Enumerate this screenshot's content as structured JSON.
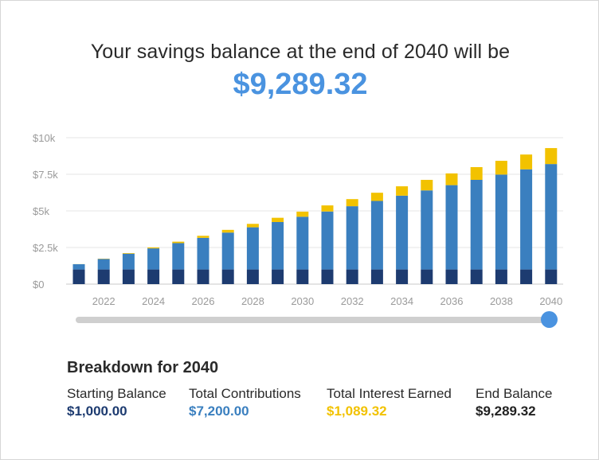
{
  "header": {
    "headline": "Your savings balance at the end of 2040 will be",
    "amount": "$9,289.32"
  },
  "colors": {
    "starting": "#1d3b70",
    "contributions": "#3a7fbf",
    "interest": "#f2c200",
    "accent": "#4a93e0"
  },
  "slider": {
    "min_year": 2021,
    "max_year": 2040,
    "selected_year": 2040
  },
  "chart_data": {
    "type": "bar",
    "stacked": true,
    "categories": [
      "2021",
      "2022",
      "2023",
      "2024",
      "2025",
      "2026",
      "2027",
      "2028",
      "2029",
      "2030",
      "2031",
      "2032",
      "2033",
      "2034",
      "2035",
      "2036",
      "2037",
      "2038",
      "2039",
      "2040"
    ],
    "x_tick_labels": [
      "2022",
      "2024",
      "2026",
      "2028",
      "2030",
      "2032",
      "2034",
      "2036",
      "2038",
      "2040"
    ],
    "y_tick_labels": [
      "$0",
      "$2.5k",
      "$5k",
      "$7.5k",
      "$10k"
    ],
    "y_ticks": [
      0,
      2500,
      5000,
      7500,
      10000
    ],
    "ylim": [
      0,
      10000
    ],
    "grid": true,
    "series": [
      {
        "name": "Starting Balance",
        "color": "#1d3b70",
        "values": [
          1000,
          1000,
          1000,
          1000,
          1000,
          1000,
          1000,
          1000,
          1000,
          1000,
          1000,
          1000,
          1000,
          1000,
          1000,
          1000,
          1000,
          1000,
          1000,
          1000
        ]
      },
      {
        "name": "Total Contributions",
        "color": "#3a7fbf",
        "values": [
          360,
          720,
          1080,
          1440,
          1800,
          2160,
          2520,
          2880,
          3240,
          3600,
          3960,
          4320,
          4680,
          5040,
          5400,
          5760,
          6120,
          6480,
          6840,
          7200
        ]
      },
      {
        "name": "Total Interest Earned",
        "color": "#f2c200",
        "values": [
          5,
          20,
          40,
          65,
          100,
          140,
          185,
          235,
          290,
          350,
          415,
          485,
          560,
          640,
          720,
          800,
          870,
          940,
          1010,
          1089.32
        ]
      }
    ]
  },
  "breakdown": {
    "title": "Breakdown for 2040",
    "items": [
      {
        "label": "Starting Balance",
        "value": "$1,000.00",
        "color": "#1d3b70"
      },
      {
        "label": "Total Contributions",
        "value": "$7,200.00",
        "color": "#3a7fbf"
      },
      {
        "label": "Total Interest Earned",
        "value": "$1,089.32",
        "color": "#f2c200"
      },
      {
        "label": "End Balance",
        "value": "$9,289.32",
        "color": "#222222"
      }
    ]
  }
}
